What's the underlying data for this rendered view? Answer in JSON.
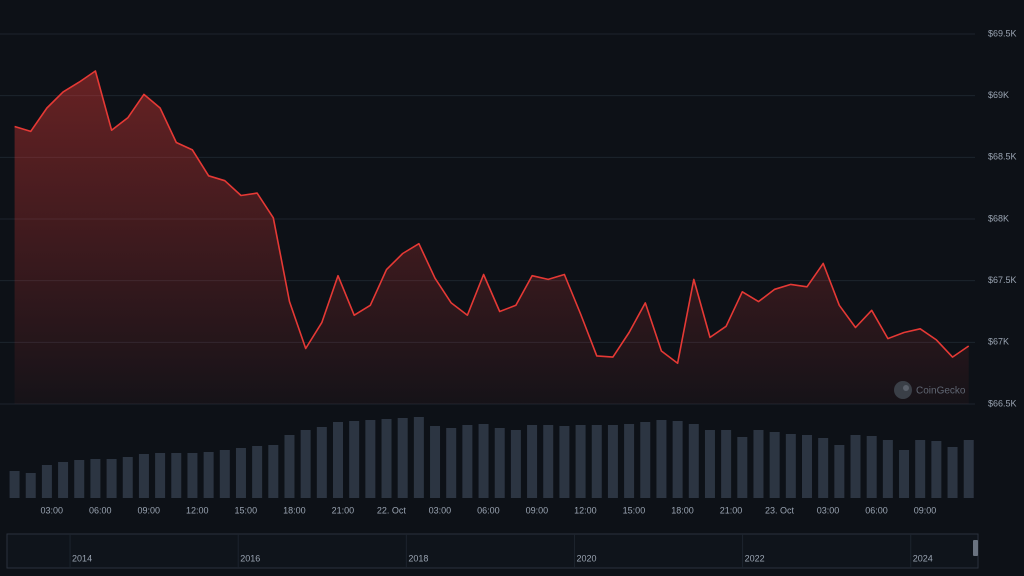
{
  "chart_data": {
    "type": "line",
    "color": "#e53935",
    "x": [
      0.7,
      1.7,
      2.7,
      3.7,
      4.7,
      5.7,
      6.7,
      7.7,
      8.7,
      9.7,
      10.7,
      11.7,
      12.7,
      13.7,
      14.7,
      15.7,
      16.7,
      17.7,
      18.7,
      19.7,
      20.7,
      21.7,
      22.7,
      23.7,
      24.7,
      25.7,
      26.7,
      27.7,
      28.7,
      29.7,
      30.7,
      31.7,
      32.7,
      33.7,
      34.7,
      35.7,
      36.7,
      37.7,
      38.7,
      39.7,
      40.7,
      41.7,
      42.7,
      43.7,
      44.7,
      45.7,
      46.7,
      47.7,
      48.7,
      49.7,
      50.7,
      51.7,
      52.7,
      53.7,
      54.7,
      55.7,
      56.7,
      57.7,
      58.7,
      59.7
    ],
    "values": [
      68750,
      68710,
      68900,
      69030,
      69110,
      69200,
      68720,
      68820,
      69010,
      68900,
      68620,
      68560,
      68350,
      68310,
      68190,
      68210,
      68010,
      67330,
      66950,
      67160,
      67540,
      67220,
      67300,
      67590,
      67720,
      67800,
      67520,
      67320,
      67220,
      67550,
      67250,
      67300,
      67540,
      67510,
      67550,
      67230,
      66890,
      66880,
      67080,
      67320,
      66930,
      66830,
      67510,
      67040,
      67130,
      67410,
      67330,
      67430,
      67470,
      67450,
      67640,
      67300,
      67120,
      67260,
      67030,
      67080,
      67110,
      67020,
      66880,
      66970
    ],
    "volume": {
      "color": "#2c3542",
      "lim": [
        0,
        100
      ],
      "values": [
        27,
        25,
        33,
        36,
        38,
        39,
        39,
        41,
        44,
        45,
        45,
        45,
        46,
        48,
        50,
        52,
        53,
        63,
        68,
        71,
        76,
        77,
        78,
        79,
        80,
        81,
        72,
        70,
        73,
        74,
        70,
        68,
        73,
        73,
        72,
        73,
        73,
        73,
        74,
        76,
        78,
        77,
        74,
        68,
        68,
        61,
        68,
        66,
        64,
        63,
        60,
        53,
        63,
        62,
        58,
        48,
        58,
        57,
        51,
        58
      ]
    },
    "xlim": [
      -0.2,
      62.5
    ],
    "xticks": [
      {
        "value": 3,
        "label": "03:00"
      },
      {
        "value": 6,
        "label": "06:00"
      },
      {
        "value": 9,
        "label": "09:00"
      },
      {
        "value": 12,
        "label": "12:00"
      },
      {
        "value": 15,
        "label": "15:00"
      },
      {
        "value": 18,
        "label": "18:00"
      },
      {
        "value": 21,
        "label": "21:00"
      },
      {
        "value": 24,
        "label": "22. Oct"
      },
      {
        "value": 27,
        "label": "03:00"
      },
      {
        "value": 30,
        "label": "06:00"
      },
      {
        "value": 33,
        "label": "09:00"
      },
      {
        "value": 36,
        "label": "12:00"
      },
      {
        "value": 39,
        "label": "15:00"
      },
      {
        "value": 42,
        "label": "18:00"
      },
      {
        "value": 45,
        "label": "21:00"
      },
      {
        "value": 48,
        "label": "23. Oct"
      },
      {
        "value": 51,
        "label": "03:00"
      },
      {
        "value": 54,
        "label": "06:00"
      },
      {
        "value": 57,
        "label": "09:00"
      }
    ],
    "ylim": [
      66500,
      69700
    ],
    "yticks": [
      {
        "value": 66500,
        "label": "$66.5K"
      },
      {
        "value": 67000,
        "label": "$67K"
      },
      {
        "value": 67500,
        "label": "$67.5K"
      },
      {
        "value": 68000,
        "label": "$68K"
      },
      {
        "value": 68500,
        "label": "$68.5K"
      },
      {
        "value": 69000,
        "label": "$69K"
      },
      {
        "value": 69500,
        "label": "$69.5K"
      }
    ],
    "grid": true,
    "watermark": "CoinGecko",
    "navigator": {
      "xlim": [
        2013.25,
        2024.8
      ],
      "xticks": [
        2014,
        2016,
        2018,
        2020,
        2022,
        2024
      ]
    }
  }
}
